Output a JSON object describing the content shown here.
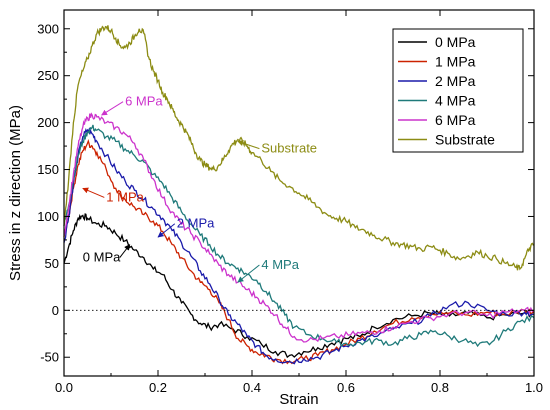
{
  "chart_data": {
    "type": "line",
    "xlabel": "Strain",
    "ylabel": "Stress in z direction (MPa)",
    "xlim": [
      0.0,
      1.0
    ],
    "ylim": [
      -70,
      320
    ],
    "xticks": [
      0.0,
      0.2,
      0.4,
      0.6,
      0.8,
      1.0
    ],
    "xtick_labels": [
      "0.0",
      "0.2",
      "0.4",
      "0.6",
      "0.8",
      "1.0"
    ],
    "yticks": [
      -50,
      0,
      50,
      100,
      150,
      200,
      250,
      300
    ],
    "ytick_labels": [
      "-50",
      "0",
      "50",
      "100",
      "150",
      "200",
      "250",
      "300"
    ],
    "reference_line": {
      "y": 0,
      "style": "dotted"
    },
    "legend_position": "top-right",
    "grid": false,
    "series": [
      {
        "name": "0 MPa",
        "color": "#000000",
        "points": [
          [
            0,
            50
          ],
          [
            0.01,
            68
          ],
          [
            0.02,
            85
          ],
          [
            0.03,
            98
          ],
          [
            0.04,
            101
          ],
          [
            0.05,
            98
          ],
          [
            0.07,
            92
          ],
          [
            0.09,
            90
          ],
          [
            0.11,
            82
          ],
          [
            0.13,
            74
          ],
          [
            0.15,
            64
          ],
          [
            0.17,
            56
          ],
          [
            0.19,
            44
          ],
          [
            0.21,
            38
          ],
          [
            0.23,
            22
          ],
          [
            0.25,
            8
          ],
          [
            0.27,
            -4
          ],
          [
            0.29,
            -14
          ],
          [
            0.31,
            -18
          ],
          [
            0.33,
            -15
          ],
          [
            0.36,
            -20
          ],
          [
            0.39,
            -28
          ],
          [
            0.42,
            -36
          ],
          [
            0.45,
            -44
          ],
          [
            0.48,
            -48
          ],
          [
            0.51,
            -44
          ],
          [
            0.54,
            -40
          ],
          [
            0.57,
            -35
          ],
          [
            0.6,
            -30
          ],
          [
            0.63,
            -28
          ],
          [
            0.66,
            -18
          ],
          [
            0.7,
            -10
          ],
          [
            0.74,
            -6
          ],
          [
            0.78,
            -3
          ],
          [
            0.82,
            -6
          ],
          [
            0.86,
            -3
          ],
          [
            0.9,
            -8
          ],
          [
            0.94,
            -5
          ],
          [
            0.98,
            -3
          ],
          [
            1.0,
            -4
          ]
        ]
      },
      {
        "name": "1 MPa",
        "color": "#cc2200",
        "points": [
          [
            0,
            78
          ],
          [
            0.01,
            100
          ],
          [
            0.02,
            130
          ],
          [
            0.03,
            155
          ],
          [
            0.04,
            170
          ],
          [
            0.05,
            178
          ],
          [
            0.06,
            175
          ],
          [
            0.07,
            168
          ],
          [
            0.09,
            150
          ],
          [
            0.11,
            130
          ],
          [
            0.13,
            118
          ],
          [
            0.15,
            110
          ],
          [
            0.17,
            102
          ],
          [
            0.19,
            95
          ],
          [
            0.21,
            84
          ],
          [
            0.23,
            70
          ],
          [
            0.25,
            56
          ],
          [
            0.27,
            42
          ],
          [
            0.29,
            30
          ],
          [
            0.31,
            22
          ],
          [
            0.33,
            8
          ],
          [
            0.35,
            -10
          ],
          [
            0.37,
            -30
          ],
          [
            0.39,
            -38
          ],
          [
            0.41,
            -45
          ],
          [
            0.43,
            -48
          ],
          [
            0.45,
            -52
          ],
          [
            0.48,
            -54
          ],
          [
            0.51,
            -52
          ],
          [
            0.54,
            -48
          ],
          [
            0.57,
            -42
          ],
          [
            0.6,
            -36
          ],
          [
            0.63,
            -30
          ],
          [
            0.66,
            -22
          ],
          [
            0.7,
            -14
          ],
          [
            0.74,
            -8
          ],
          [
            0.78,
            -4
          ],
          [
            0.82,
            -3
          ],
          [
            0.86,
            -5
          ],
          [
            0.9,
            -2
          ],
          [
            0.94,
            -4
          ],
          [
            0.98,
            0
          ],
          [
            1.0,
            -2
          ]
        ]
      },
      {
        "name": "2 MPa",
        "color": "#1a1aaa",
        "points": [
          [
            0,
            72
          ],
          [
            0.01,
            100
          ],
          [
            0.02,
            135
          ],
          [
            0.03,
            165
          ],
          [
            0.04,
            185
          ],
          [
            0.05,
            192
          ],
          [
            0.06,
            188
          ],
          [
            0.07,
            180
          ],
          [
            0.09,
            165
          ],
          [
            0.11,
            150
          ],
          [
            0.13,
            138
          ],
          [
            0.15,
            128
          ],
          [
            0.17,
            118
          ],
          [
            0.19,
            108
          ],
          [
            0.21,
            98
          ],
          [
            0.23,
            85
          ],
          [
            0.25,
            72
          ],
          [
            0.27,
            58
          ],
          [
            0.29,
            42
          ],
          [
            0.31,
            28
          ],
          [
            0.33,
            12
          ],
          [
            0.35,
            -5
          ],
          [
            0.37,
            -15
          ],
          [
            0.39,
            -28
          ],
          [
            0.41,
            -38
          ],
          [
            0.43,
            -48
          ],
          [
            0.45,
            -52
          ],
          [
            0.48,
            -55
          ],
          [
            0.51,
            -52
          ],
          [
            0.54,
            -50
          ],
          [
            0.57,
            -44
          ],
          [
            0.6,
            -38
          ],
          [
            0.63,
            -32
          ],
          [
            0.66,
            -28
          ],
          [
            0.7,
            -20
          ],
          [
            0.74,
            -14
          ],
          [
            0.78,
            -6
          ],
          [
            0.82,
            5
          ],
          [
            0.86,
            8
          ],
          [
            0.9,
            0
          ],
          [
            0.94,
            -4
          ],
          [
            0.98,
            -2
          ],
          [
            1.0,
            -4
          ]
        ]
      },
      {
        "name": "4 MPa",
        "color": "#1f7a7a",
        "points": [
          [
            0,
            90
          ],
          [
            0.01,
            112
          ],
          [
            0.02,
            140
          ],
          [
            0.03,
            165
          ],
          [
            0.04,
            180
          ],
          [
            0.05,
            190
          ],
          [
            0.06,
            195
          ],
          [
            0.07,
            192
          ],
          [
            0.09,
            185
          ],
          [
            0.11,
            180
          ],
          [
            0.13,
            172
          ],
          [
            0.15,
            165
          ],
          [
            0.17,
            158
          ],
          [
            0.19,
            145
          ],
          [
            0.21,
            135
          ],
          [
            0.23,
            120
          ],
          [
            0.25,
            105
          ],
          [
            0.27,
            92
          ],
          [
            0.29,
            80
          ],
          [
            0.31,
            70
          ],
          [
            0.33,
            58
          ],
          [
            0.35,
            50
          ],
          [
            0.37,
            45
          ],
          [
            0.39,
            38
          ],
          [
            0.41,
            32
          ],
          [
            0.43,
            20
          ],
          [
            0.45,
            8
          ],
          [
            0.47,
            -5
          ],
          [
            0.49,
            -18
          ],
          [
            0.52,
            -26
          ],
          [
            0.55,
            -30
          ],
          [
            0.58,
            -34
          ],
          [
            0.61,
            -36
          ],
          [
            0.64,
            -34
          ],
          [
            0.67,
            -32
          ],
          [
            0.7,
            -36
          ],
          [
            0.73,
            -30
          ],
          [
            0.76,
            -26
          ],
          [
            0.79,
            -22
          ],
          [
            0.82,
            -28
          ],
          [
            0.85,
            -32
          ],
          [
            0.88,
            -38
          ],
          [
            0.91,
            -34
          ],
          [
            0.94,
            -22
          ],
          [
            0.97,
            -12
          ],
          [
            1.0,
            -8
          ]
        ]
      },
      {
        "name": "6 MPa",
        "color": "#cc33cc",
        "points": [
          [
            0,
            80
          ],
          [
            0.01,
            110
          ],
          [
            0.02,
            145
          ],
          [
            0.03,
            175
          ],
          [
            0.04,
            195
          ],
          [
            0.05,
            205
          ],
          [
            0.06,
            208
          ],
          [
            0.07,
            206
          ],
          [
            0.09,
            200
          ],
          [
            0.11,
            195
          ],
          [
            0.13,
            188
          ],
          [
            0.15,
            178
          ],
          [
            0.17,
            160
          ],
          [
            0.19,
            140
          ],
          [
            0.21,
            120
          ],
          [
            0.23,
            105
          ],
          [
            0.25,
            92
          ],
          [
            0.27,
            82
          ],
          [
            0.29,
            72
          ],
          [
            0.31,
            60
          ],
          [
            0.33,
            48
          ],
          [
            0.35,
            38
          ],
          [
            0.37,
            30
          ],
          [
            0.39,
            22
          ],
          [
            0.41,
            14
          ],
          [
            0.43,
            5
          ],
          [
            0.45,
            -5
          ],
          [
            0.47,
            -18
          ],
          [
            0.49,
            -28
          ],
          [
            0.52,
            -32
          ],
          [
            0.55,
            -30
          ],
          [
            0.58,
            -28
          ],
          [
            0.61,
            -26
          ],
          [
            0.64,
            -24
          ],
          [
            0.67,
            -22
          ],
          [
            0.7,
            -18
          ],
          [
            0.74,
            -12
          ],
          [
            0.78,
            -8
          ],
          [
            0.82,
            -4
          ],
          [
            0.86,
            -2
          ],
          [
            0.9,
            -6
          ],
          [
            0.94,
            -2
          ],
          [
            0.98,
            0
          ],
          [
            1.0,
            0
          ]
        ]
      },
      {
        "name": "Substrate",
        "color": "#8c8c14",
        "points": [
          [
            0,
            90
          ],
          [
            0.01,
            140
          ],
          [
            0.02,
            200
          ],
          [
            0.03,
            240
          ],
          [
            0.04,
            255
          ],
          [
            0.05,
            268
          ],
          [
            0.06,
            282
          ],
          [
            0.07,
            295
          ],
          [
            0.08,
            300
          ],
          [
            0.09,
            302
          ],
          [
            0.1,
            298
          ],
          [
            0.11,
            290
          ],
          [
            0.12,
            282
          ],
          [
            0.13,
            280
          ],
          [
            0.14,
            285
          ],
          [
            0.15,
            292
          ],
          [
            0.16,
            300
          ],
          [
            0.17,
            295
          ],
          [
            0.18,
            270
          ],
          [
            0.19,
            255
          ],
          [
            0.2,
            245
          ],
          [
            0.21,
            232
          ],
          [
            0.22,
            225
          ],
          [
            0.23,
            215
          ],
          [
            0.24,
            205
          ],
          [
            0.25,
            198
          ],
          [
            0.26,
            190
          ],
          [
            0.27,
            180
          ],
          [
            0.28,
            168
          ],
          [
            0.29,
            160
          ],
          [
            0.3,
            155
          ],
          [
            0.31,
            152
          ],
          [
            0.32,
            150
          ],
          [
            0.33,
            155
          ],
          [
            0.34,
            162
          ],
          [
            0.35,
            170
          ],
          [
            0.36,
            178
          ],
          [
            0.37,
            182
          ],
          [
            0.38,
            180
          ],
          [
            0.39,
            175
          ],
          [
            0.4,
            168
          ],
          [
            0.42,
            160
          ],
          [
            0.44,
            148
          ],
          [
            0.46,
            138
          ],
          [
            0.48,
            132
          ],
          [
            0.5,
            125
          ],
          [
            0.52,
            118
          ],
          [
            0.54,
            110
          ],
          [
            0.56,
            102
          ],
          [
            0.58,
            98
          ],
          [
            0.6,
            95
          ],
          [
            0.62,
            88
          ],
          [
            0.64,
            85
          ],
          [
            0.66,
            80
          ],
          [
            0.68,
            76
          ],
          [
            0.7,
            72
          ],
          [
            0.72,
            70
          ],
          [
            0.74,
            68
          ],
          [
            0.76,
            65
          ],
          [
            0.78,
            68
          ],
          [
            0.8,
            64
          ],
          [
            0.82,
            60
          ],
          [
            0.84,
            55
          ],
          [
            0.86,
            58
          ],
          [
            0.88,
            62
          ],
          [
            0.9,
            58
          ],
          [
            0.92,
            55
          ],
          [
            0.94,
            50
          ],
          [
            0.96,
            46
          ],
          [
            0.97,
            44
          ],
          [
            0.98,
            55
          ],
          [
            0.99,
            66
          ],
          [
            1.0,
            70
          ]
        ]
      }
    ],
    "annotations": [
      {
        "text": "0 MPa",
        "color": "#000000",
        "x": 0.04,
        "y": 52,
        "tip_x": 0.14,
        "tip_y": 70
      },
      {
        "text": "1 MPa",
        "color": "#cc2200",
        "x": 0.09,
        "y": 116,
        "tip_x": 0.04,
        "tip_y": 130
      },
      {
        "text": "2 MPa",
        "color": "#1a1aaa",
        "x": 0.24,
        "y": 88,
        "tip_x": 0.2,
        "tip_y": 78
      },
      {
        "text": "4 MPa",
        "color": "#1f7a7a",
        "x": 0.42,
        "y": 44,
        "tip_x": 0.37,
        "tip_y": 30
      },
      {
        "text": "6 MPa",
        "color": "#cc33cc",
        "x": 0.13,
        "y": 218,
        "tip_x": 0.08,
        "tip_y": 208
      },
      {
        "text": "Substrate",
        "color": "#8c8c14",
        "x": 0.42,
        "y": 168,
        "tip_x": 0.37,
        "tip_y": 180
      }
    ]
  }
}
